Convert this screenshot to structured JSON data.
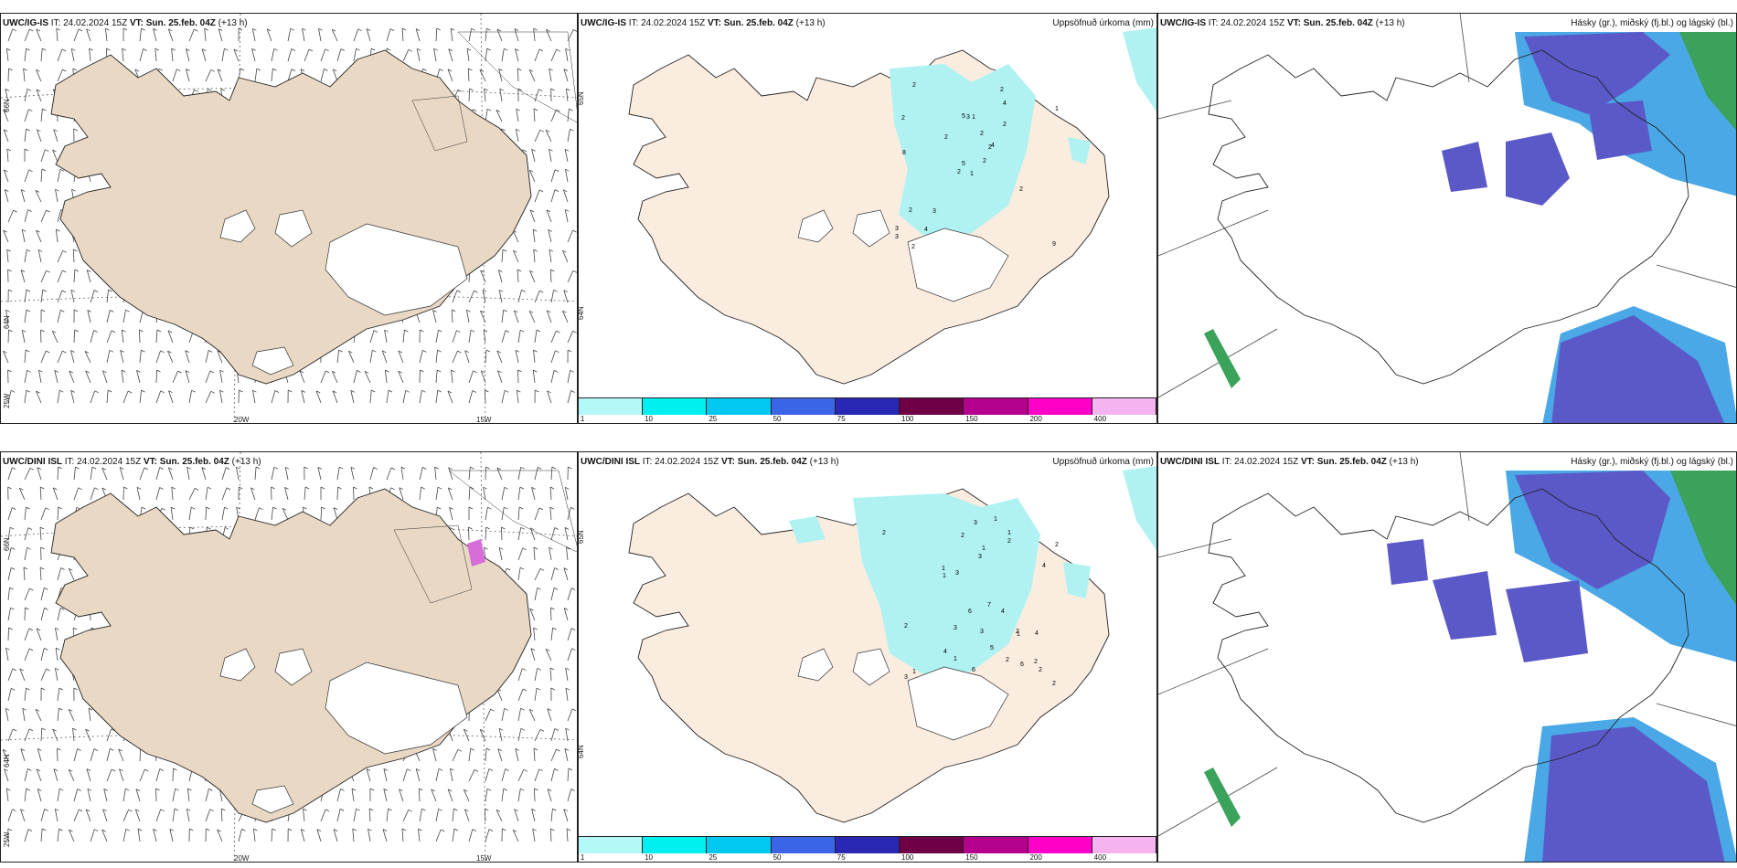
{
  "colors": {
    "land_wind": "#e8d8c4",
    "land_precip": "#fbece0",
    "land_cloud": "#e8d8c4",
    "precip_light": "#b0f2f2",
    "cloud_high": "#5b59c8",
    "cloud_edge": "#4aa8e6",
    "cloud_low": "#3aa25a"
  },
  "rows": [
    {
      "model": "UWC/IG-IS",
      "panels": [
        {
          "kind": "wind",
          "header": {
            "model": "UWC/IG-IS",
            "it_label": "IT:",
            "it": "24.02.2024 15Z",
            "vt_label": "VT:",
            "vt": "Sun. 25.feb. 04Z",
            "lead": "(+13 h)"
          },
          "lat_labels": [
            "66N",
            "64N",
            "25W"
          ],
          "lon_labels": [
            "20W",
            "15W"
          ]
        },
        {
          "kind": "precip",
          "header": {
            "model": "UWC/IG-IS",
            "it_label": "IT:",
            "it": "24.02.2024 15Z",
            "vt_label": "VT:",
            "vt": "Sun. 25.feb. 04Z",
            "lead": "(+13 h)"
          },
          "title": "Uppsöfnuð úrkoma (mm)",
          "lat_labels": [
            "65N",
            "64N"
          ],
          "values": [
            "1",
            "2",
            "5",
            "3",
            "2",
            "3",
            "2",
            "1",
            "4",
            "2",
            "2",
            "9",
            "8",
            "1",
            "2",
            "2",
            "2",
            "5",
            "2",
            "2",
            "2",
            "3",
            "4",
            "3",
            "4",
            "2"
          ]
        },
        {
          "kind": "cloud",
          "header": {
            "model": "UWC/IG-IS",
            "it_label": "IT:",
            "it": "24.02.2024 15Z",
            "vt_label": "VT:",
            "vt": "Sun. 25.feb. 04Z",
            "lead": "(+13 h)"
          },
          "title": "Hásky (gr.), miðský (fj.bl.) og lágský (bl.)"
        }
      ]
    },
    {
      "model": "UWC/DINI ISL",
      "panels": [
        {
          "kind": "wind",
          "header": {
            "model": "UWC/DINI ISL",
            "it_label": "IT:",
            "it": "24.02.2024 15Z",
            "vt_label": "VT:",
            "vt": "Sun. 25.feb. 04Z",
            "lead": "(+13 h)"
          },
          "lat_labels": [
            "66N",
            "64N",
            "25W"
          ],
          "lon_labels": [
            "20W",
            "15W"
          ]
        },
        {
          "kind": "precip",
          "header": {
            "model": "UWC/DINI ISL",
            "it_label": "IT:",
            "it": "24.02.2024 15Z",
            "vt_label": "VT:",
            "vt": "Sun. 25.feb. 04Z",
            "lead": "(+13 h)"
          },
          "title": "Uppsöfnuð úrkoma (mm)",
          "lat_labels": [
            "65N",
            "64N"
          ],
          "values": [
            "3",
            "4",
            "7",
            "3",
            "2",
            "1",
            "2",
            "1",
            "6",
            "4",
            "2",
            "1",
            "1",
            "3",
            "2",
            "1",
            "2",
            "2",
            "6",
            "2",
            "2",
            "1",
            "6",
            "4",
            "1",
            "2",
            "3",
            "3",
            "4",
            "5",
            "2",
            "3",
            "1"
          ]
        },
        {
          "kind": "cloud",
          "header": {
            "model": "UWC/DINI ISL",
            "it_label": "IT:",
            "it": "24.02.2024 15Z",
            "vt_label": "VT:",
            "vt": "Sun. 25.feb. 04Z",
            "lead": "(+13 h)"
          },
          "title": "Hásky (gr.), miðský (fj.bl.) og lágský (bl.)"
        }
      ]
    }
  ],
  "legend": {
    "colors": [
      "#b4f8f8",
      "#00f0f0",
      "#00c8f0",
      "#3c64e6",
      "#2828b4",
      "#6e0046",
      "#b4008c",
      "#ff00c8",
      "#f5b4f0"
    ],
    "labels": [
      "1",
      "10",
      "25",
      "50",
      "75",
      "100",
      "150",
      "200",
      "400"
    ]
  }
}
